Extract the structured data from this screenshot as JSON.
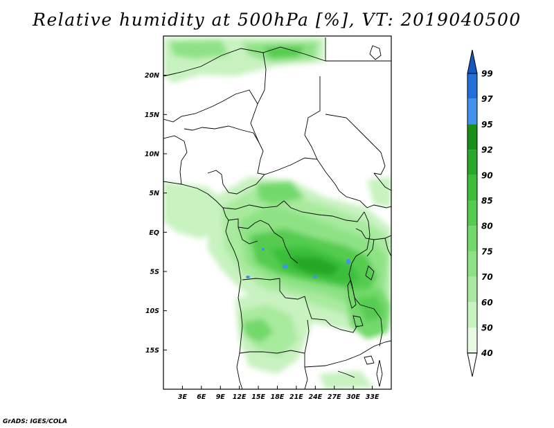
{
  "title": "Relative humidity at 500hPa [%], VT: 2019040500",
  "credit": "GrADS: IGES/COLA",
  "map": {
    "lon_range": [
      0,
      36
    ],
    "lat_range": [
      -20,
      25
    ],
    "x_ticks": [
      "3E",
      "6E",
      "9E",
      "12E",
      "15E",
      "18E",
      "21E",
      "24E",
      "27E",
      "30E",
      "33E"
    ],
    "y_ticks": [
      "20N",
      "15N",
      "10N",
      "5N",
      "EQ",
      "5S",
      "10S",
      "15S"
    ],
    "boundaries": "national borders and coastlines (black lines)",
    "field": "relative humidity at 500hPa, shaded"
  },
  "colorbar": {
    "levels": [
      "40",
      "50",
      "60",
      "70",
      "75",
      "80",
      "85",
      "90",
      "92",
      "95",
      "97",
      "99"
    ],
    "colors": [
      "#ffffff",
      "#e8fae4",
      "#c8f2c0",
      "#a8ea9e",
      "#8ee285",
      "#72d96a",
      "#54cc4f",
      "#3bbf3b",
      "#28a828",
      "#189018",
      "#3f93ef",
      "#2070dc",
      "#1558c0"
    ],
    "orientation": "vertical, triangular end caps"
  },
  "colors": {
    "border": "#000000",
    "background": "#ffffff"
  }
}
